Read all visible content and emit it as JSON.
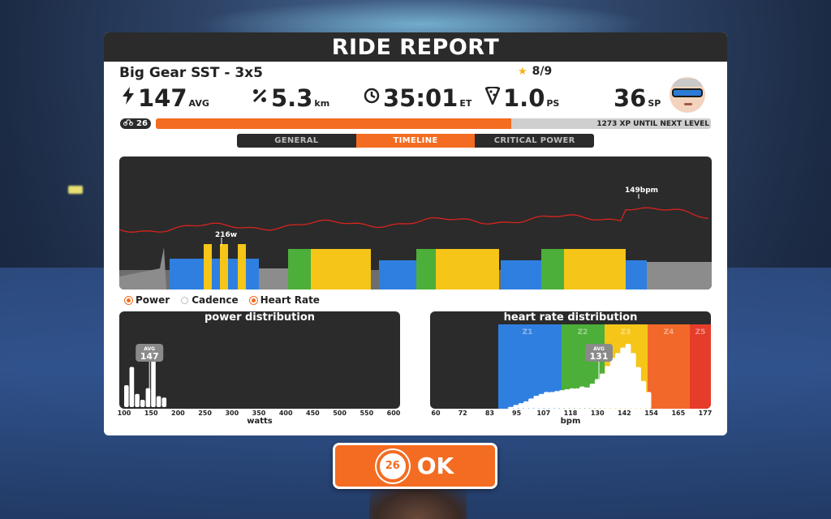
{
  "panel": {
    "title": "RIDE REPORT",
    "workout_name": "Big Gear SST - 3x5",
    "stars_text": "8/9"
  },
  "stats": {
    "power_value": "147",
    "power_unit": "AVG",
    "distance_value": "5.3",
    "distance_unit": "km",
    "time_value": "35:01",
    "time_unit": "ET",
    "pizza_value": "1.0",
    "pizza_unit": "PS",
    "drops_value": "36",
    "drops_unit": "SP"
  },
  "level": {
    "number": "26",
    "xp_text": "1273 XP UNTIL NEXT LEVEL",
    "progress_fraction": 0.64
  },
  "tabs": [
    "GENERAL",
    "TIMELINE",
    "CRITICAL POWER"
  ],
  "active_tab": "TIMELINE",
  "timeline": {
    "peak_power_label": "216w",
    "peak_hr_label": "149bpm"
  },
  "legend": {
    "power": "Power",
    "cadence": "Cadence",
    "heart_rate": "Heart Rate"
  },
  "colors": {
    "accent": "#f36c21",
    "dark": "#2b2b2b",
    "z1": "#8c8c8c",
    "z2": "#2f7fe0",
    "z3": "#4caf3a",
    "z4": "#f5c518",
    "z5": "#f2682a",
    "z6": "#e63c2a",
    "hr_line": "#d8231e"
  },
  "chart_data": [
    {
      "type": "bar",
      "title": "power distribution",
      "xlabel": "watts",
      "ticks": [
        "100",
        "150",
        "200",
        "250",
        "300",
        "350",
        "400",
        "450",
        "500",
        "550",
        "600"
      ],
      "avg_label": "AVG",
      "avg_value": "147",
      "bins_start": 100,
      "bin_width": 10,
      "values": [
        30,
        55,
        18,
        10,
        26,
        85,
        15,
        13
      ]
    },
    {
      "type": "bar",
      "title": "heart rate distribution",
      "xlabel": "bpm",
      "ticks": [
        "60",
        "72",
        "83",
        "95",
        "107",
        "118",
        "130",
        "142",
        "154",
        "165",
        "177"
      ],
      "avg_label": "AVG",
      "avg_value": "131",
      "zones": [
        "Z1",
        "Z2",
        "Z3",
        "Z4",
        "Z5"
      ],
      "values": [
        2,
        4,
        6,
        8,
        11,
        14,
        16,
        18,
        18,
        19,
        20,
        21,
        22,
        22,
        24,
        23,
        27,
        32,
        38,
        46,
        55,
        60,
        66,
        70,
        60,
        45,
        30,
        18
      ]
    }
  ]
}
